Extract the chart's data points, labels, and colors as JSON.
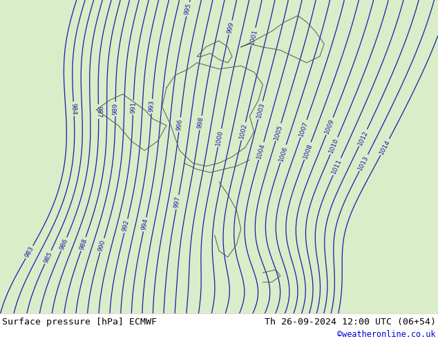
{
  "title_left": "Surface pressure [hPa] ECMWF",
  "title_right": "Th 26-09-2024 12:00 UTC (06+54)",
  "watermark": "©weatheronline.co.uk",
  "bg_color_light": "#d8edc8",
  "bg_color_lighter": "#e8f4d8",
  "line_color_blue": "#1a1aaa",
  "footer_bg": "#ffffff",
  "footer_text_color": "#000000",
  "watermark_color": "#0000cc",
  "figsize": [
    6.34,
    4.9
  ],
  "dpi": 100,
  "pressure_min": 983,
  "pressure_max": 1014
}
